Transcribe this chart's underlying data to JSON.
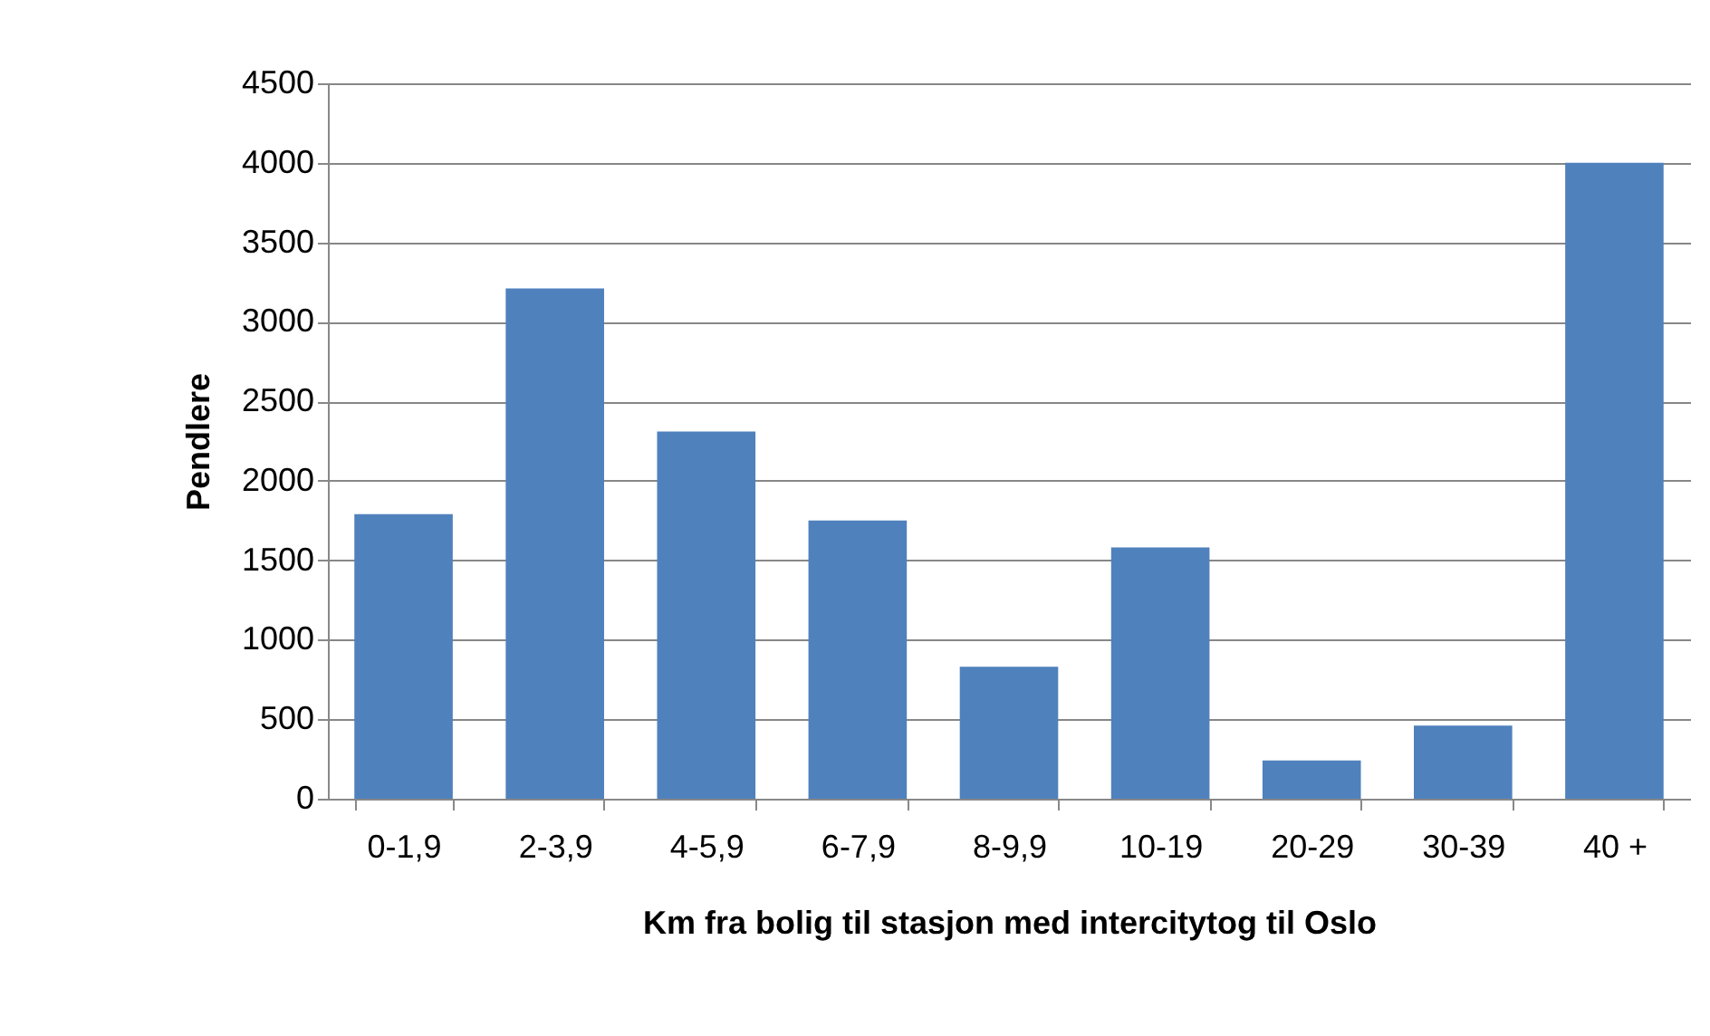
{
  "chart_data": {
    "type": "bar",
    "xlabel": "Km fra bolig til stasjon med intercitytog til Oslo",
    "ylabel": "Pendlere",
    "categories": [
      "0-1,9",
      "2-3,9",
      "4-5,9",
      "6-7,9",
      "8-9,9",
      "10-19",
      "20-29",
      "30-39",
      "40 +"
    ],
    "values": [
      1790,
      3210,
      2310,
      1750,
      830,
      1580,
      240,
      460,
      4000
    ],
    "color": "#4f81bd",
    "ylim": [
      0,
      4500
    ],
    "yticks": [
      0,
      500,
      1000,
      1500,
      2000,
      2500,
      3000,
      3500,
      4000,
      4500
    ],
    "grid": "y"
  }
}
